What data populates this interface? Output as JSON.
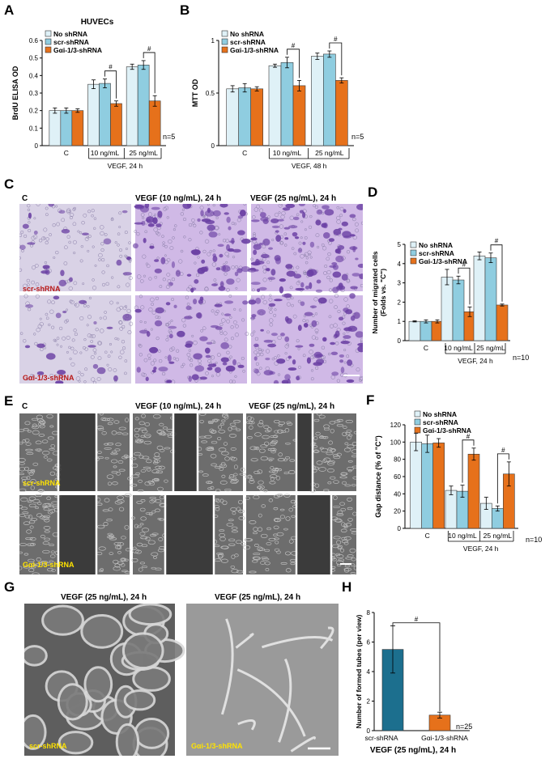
{
  "colors": {
    "no_shrna": "#dff1f7",
    "scr_shrna": "#8fcde0",
    "gai_shrna": "#e6711b",
    "scr_bar_h": "#1c6f8e",
    "crystal_bg": "#dcd0e6",
    "crystal_cell": "#6a3fa3",
    "grey_bg": "#6d6d6d"
  },
  "panels": {
    "A": "A",
    "B": "B",
    "C": "C",
    "D": "D",
    "E": "E",
    "F": "F",
    "G": "G",
    "H": "H"
  },
  "photo_panels": {
    "C": {
      "headers": [
        "C",
        "VEGF (10 ng/mL), 24 h",
        "VEGF (25 ng/mL), 24 h"
      ],
      "row_labels": [
        "scr-shRNA",
        "Gαi-1/3-shRNA"
      ]
    },
    "E": {
      "headers": [
        "C",
        "VEGF (10 ng/mL), 24 h",
        "VEGF (25 ng/mL), 24 h"
      ],
      "row_labels": [
        "scr-shRNA",
        "Gαi-1/3-shRNA"
      ]
    },
    "G": {
      "headers": [
        "VEGF (25 ng/mL), 24 h",
        "VEGF (25 ng/mL), 24 h"
      ],
      "row_labels": [
        "scr-shRNA",
        "Gαi-1/3-shRNA"
      ]
    }
  },
  "chart_data": [
    {
      "panel": "A",
      "type": "bar",
      "title": "HUVECs",
      "ylabel": "BrdU ELISA OD",
      "xlabel": "VEGF, 24 h",
      "ylim": [
        0,
        0.6
      ],
      "yticks": [
        "0",
        "0.1",
        "0.2",
        "0.3",
        "0.4",
        "0.5",
        "0.6"
      ],
      "categories": [
        "C",
        "10 ng/mL",
        "25 ng/mL"
      ],
      "series": [
        {
          "name": "No shRNA",
          "values": [
            0.2,
            0.35,
            0.45
          ],
          "errors": [
            0.015,
            0.025,
            0.015
          ]
        },
        {
          "name": "scr-shRNA",
          "values": [
            0.2,
            0.355,
            0.46
          ],
          "errors": [
            0.015,
            0.025,
            0.025
          ]
        },
        {
          "name": "Gαi-1/3-shRNA",
          "values": [
            0.2,
            0.24,
            0.255
          ],
          "errors": [
            0.01,
            0.015,
            0.03
          ]
        }
      ],
      "significance": [
        "#",
        "#"
      ],
      "n_label": "n=5"
    },
    {
      "panel": "B",
      "type": "bar",
      "title": "",
      "ylabel": "MTT OD",
      "xlabel": "VEGF, 48 h",
      "ylim": [
        0,
        1
      ],
      "yticks": [
        "0",
        "0.5",
        "1"
      ],
      "categories": [
        "C",
        "10 ng/mL",
        "25 ng/mL"
      ],
      "series": [
        {
          "name": "No shRNA",
          "values": [
            0.54,
            0.76,
            0.85
          ],
          "errors": [
            0.03,
            0.015,
            0.03
          ]
        },
        {
          "name": "scr-shRNA",
          "values": [
            0.55,
            0.79,
            0.87
          ],
          "errors": [
            0.04,
            0.05,
            0.03
          ]
        },
        {
          "name": "Gαi-1/3-shRNA",
          "values": [
            0.54,
            0.57,
            0.62
          ],
          "errors": [
            0.02,
            0.05,
            0.025
          ]
        }
      ],
      "significance": [
        "#",
        "#"
      ],
      "n_label": "n=5"
    },
    {
      "panel": "D",
      "type": "bar",
      "title": "",
      "ylabel": "Number of migrated cells (Folds vs. \"C\")",
      "xlabel": "VEGF, 24 h",
      "ylim": [
        0,
        5
      ],
      "yticks": [
        "0",
        "1",
        "2",
        "3",
        "4",
        "5"
      ],
      "categories": [
        "C",
        "10 ng/mL",
        "25 ng/mL"
      ],
      "series": [
        {
          "name": "No shRNA",
          "values": [
            1.0,
            3.3,
            4.4
          ],
          "errors": [
            0.03,
            0.4,
            0.2
          ]
        },
        {
          "name": "scr-shRNA",
          "values": [
            1.0,
            3.15,
            4.3
          ],
          "errors": [
            0.08,
            0.2,
            0.25
          ]
        },
        {
          "name": "Gαi-1/3-shRNA",
          "values": [
            1.0,
            1.5,
            1.85
          ],
          "errors": [
            0.08,
            0.25,
            0.05
          ]
        }
      ],
      "significance": [
        "#",
        "#"
      ],
      "n_label": "n=10"
    },
    {
      "panel": "F",
      "type": "bar",
      "title": "",
      "ylabel": "Gap distance (% of \"C\")",
      "xlabel": "VEGF, 24 h",
      "ylim": [
        0,
        120
      ],
      "yticks": [
        "0",
        "20",
        "40",
        "60",
        "80",
        "100",
        "120"
      ],
      "categories": [
        "C",
        "10 ng/mL",
        "25 ng/mL"
      ],
      "series": [
        {
          "name": "No shRNA",
          "values": [
            100,
            44,
            29
          ],
          "errors": [
            10,
            5,
            7
          ]
        },
        {
          "name": "scr-shRNA",
          "values": [
            98,
            43,
            23
          ],
          "errors": [
            10,
            7,
            3
          ]
        },
        {
          "name": "Gαi-1/3-shRNA",
          "values": [
            99,
            86,
            63
          ],
          "errors": [
            5,
            7,
            14
          ]
        }
      ],
      "significance": [
        "#",
        "#"
      ],
      "n_label": "n=10"
    },
    {
      "panel": "H",
      "type": "bar",
      "title": "",
      "ylabel": "Number of formed tubes (per view)",
      "xlabel": "VEGF (25 ng/mL), 24 h",
      "ylim": [
        0,
        8
      ],
      "yticks": [
        "0",
        "2",
        "4",
        "6",
        "8"
      ],
      "categories": [
        "scr-shRNA",
        "Gαi-1/3-shRNA"
      ],
      "series": [
        {
          "name": "",
          "values": [
            5.5,
            1.05
          ],
          "errors": [
            1.6,
            0.2
          ]
        }
      ],
      "significance": [
        "#"
      ],
      "n_label": "n=25"
    }
  ]
}
